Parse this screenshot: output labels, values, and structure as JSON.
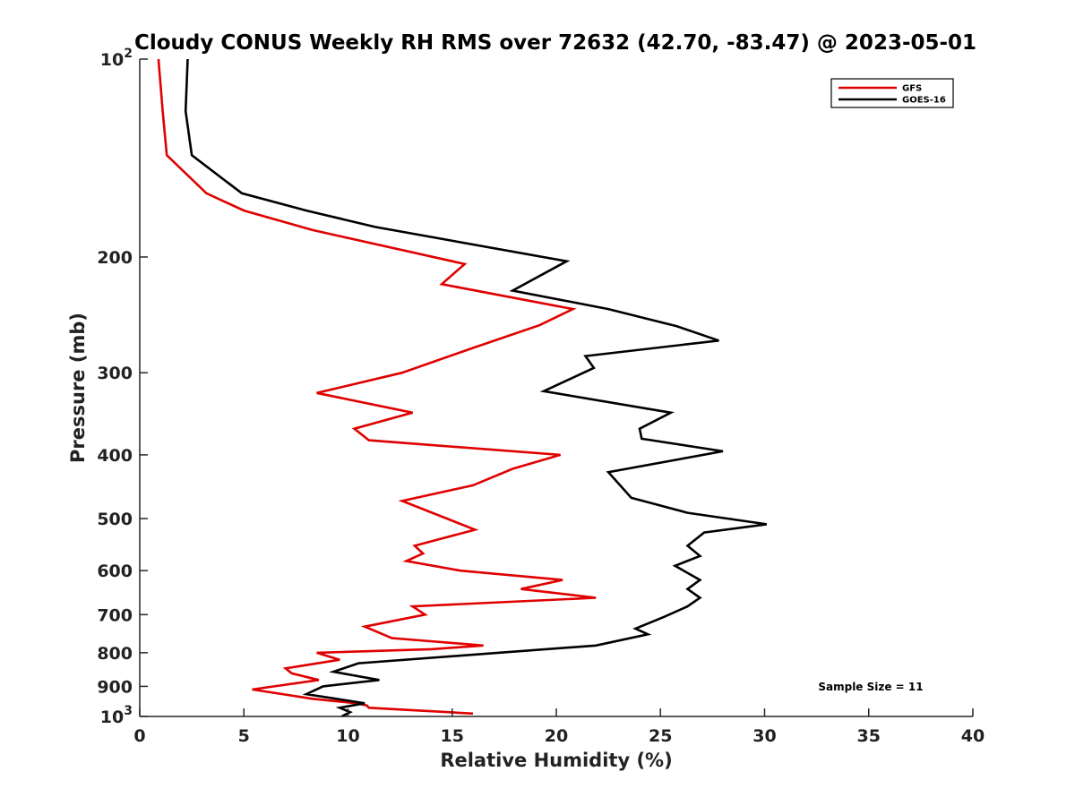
{
  "chart_data": {
    "type": "line",
    "title": "Cloudy CONUS Weekly RH RMS over 72632 (42.70, -83.47) @ 2023-05-01",
    "xlabel": "Relative Humidity (%)",
    "ylabel": "Pressure (mb)",
    "xlim": [
      0,
      40
    ],
    "ylim": [
      1000,
      100
    ],
    "y_scale": "log",
    "x_ticks": [
      0,
      5,
      10,
      15,
      20,
      25,
      30,
      35,
      40
    ],
    "x_tick_labels": [
      "0",
      "5",
      "10",
      "15",
      "20",
      "25",
      "30",
      "35",
      "40"
    ],
    "y_ticks": [
      100,
      200,
      300,
      400,
      500,
      600,
      700,
      800,
      900,
      1000
    ],
    "y_tick_labels": [
      {
        "base": "10",
        "exp": "2"
      },
      {
        "base": "200"
      },
      {
        "base": "300"
      },
      {
        "base": "400"
      },
      {
        "base": "500"
      },
      {
        "base": "600"
      },
      {
        "base": "700"
      },
      {
        "base": "800"
      },
      {
        "base": "900"
      },
      {
        "base": "10",
        "exp": "3"
      }
    ],
    "grid": false,
    "legend_position": "top-right",
    "series": [
      {
        "name": "GFS",
        "color": "#e00000",
        "x": [
          0.9,
          1.1,
          1.3,
          3.2,
          5.0,
          8.3,
          15.6,
          14.5,
          20.8,
          19.2,
          16.0,
          12.6,
          8.5,
          13.1,
          10.3,
          11.0,
          20.2,
          17.9,
          16.0,
          12.6,
          16.1,
          13.2,
          13.6,
          12.8,
          15.4,
          20.3,
          18.3,
          21.9,
          13.1,
          13.7,
          10.8,
          12.1,
          16.5,
          14.0,
          8.5,
          9.6,
          7.0,
          7.3,
          8.6,
          5.4,
          8.3,
          10.4,
          10.9,
          11.0,
          16.0
        ],
        "y": [
          100,
          120,
          140,
          160,
          170,
          182,
          205,
          220,
          240,
          254,
          275,
          300,
          322,
          345,
          365,
          380,
          400,
          420,
          445,
          470,
          520,
          550,
          565,
          580,
          600,
          620,
          640,
          660,
          680,
          700,
          730,
          760,
          780,
          790,
          800,
          820,
          845,
          860,
          880,
          910,
          940,
          955,
          962,
          970,
          990
        ]
      },
      {
        "name": "GOES-16",
        "color": "#000000",
        "x": [
          2.3,
          2.2,
          2.5,
          4.9,
          8.0,
          11.3,
          20.5,
          17.9,
          22.5,
          25.8,
          27.8,
          21.4,
          21.8,
          19.4,
          25.5,
          24.0,
          24.1,
          28.0,
          22.5,
          23.6,
          26.3,
          30.1,
          27.1,
          26.3,
          26.9,
          25.7,
          26.9,
          26.3,
          26.9,
          26.3,
          25.2,
          23.8,
          24.4,
          21.9,
          10.5,
          9.3,
          11.5,
          8.8,
          8.0,
          10.8,
          9.6,
          10.1,
          9.7
        ],
        "y": [
          100,
          120,
          140,
          160,
          170,
          180,
          203,
          225,
          240,
          255,
          268,
          283,
          295,
          320,
          345,
          365,
          378,
          395,
          425,
          465,
          490,
          510,
          525,
          550,
          570,
          590,
          620,
          640,
          660,
          680,
          705,
          735,
          750,
          780,
          830,
          855,
          880,
          900,
          925,
          955,
          970,
          985,
          1000
        ]
      }
    ],
    "annotations": [
      "Sample Size = 11"
    ]
  }
}
